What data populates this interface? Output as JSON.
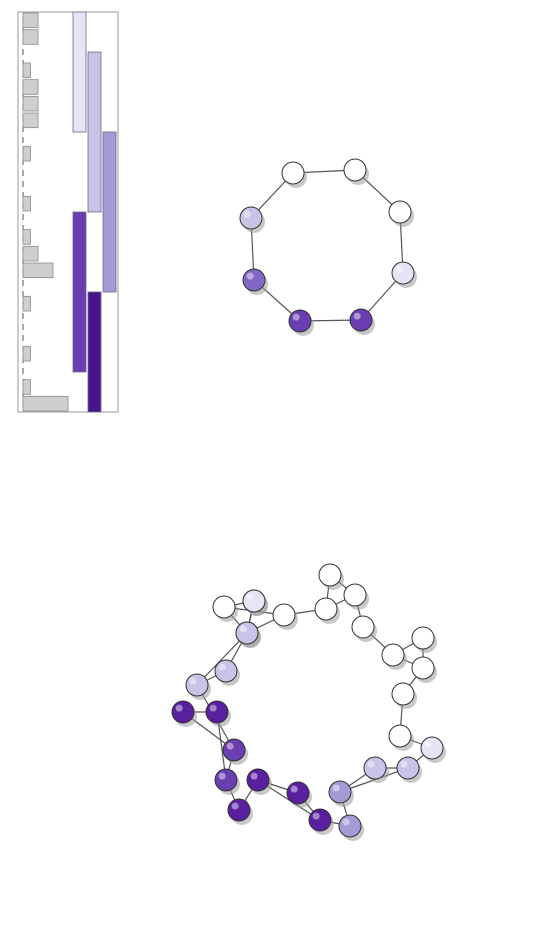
{
  "colors": {
    "shade_0": "#ffffff",
    "shade_1": "#e6e4f5",
    "shade_2": "#c8c4e8",
    "shade_3": "#a49ad6",
    "shade_4": "#8566c4",
    "shade_5": "#6a3db0",
    "shade_6": "#5a1f9e",
    "shade_7": "#4a148f"
  },
  "legend_panel": {
    "histogram_bars": [
      2,
      2,
      0,
      1,
      2,
      2,
      2,
      0,
      1,
      0,
      0,
      1,
      0,
      1,
      2,
      4,
      0,
      1,
      0,
      0,
      1,
      0,
      1,
      6
    ],
    "cover_intervals": [
      {
        "start": 0.0,
        "end": 0.3,
        "shade": "shade_1"
      },
      {
        "start": 0.1,
        "end": 0.5,
        "shade": "shade_2"
      },
      {
        "start": 0.3,
        "end": 0.7,
        "shade": "shade_3"
      },
      {
        "start": 0.5,
        "end": 0.9,
        "shade": "shade_5"
      },
      {
        "start": 0.7,
        "end": 1.0,
        "shade": "shade_7"
      }
    ]
  },
  "graph_small": {
    "nodes": [
      {
        "id": "a",
        "shade": "shade_0"
      },
      {
        "id": "b",
        "shade": "shade_0"
      },
      {
        "id": "c",
        "shade": "shade_0"
      },
      {
        "id": "d",
        "shade": "shade_1"
      },
      {
        "id": "e",
        "shade": "shade_5"
      },
      {
        "id": "f",
        "shade": "shade_5"
      },
      {
        "id": "g",
        "shade": "shade_4"
      },
      {
        "id": "h",
        "shade": "shade_2"
      }
    ],
    "edges": [
      [
        "a",
        "b"
      ],
      [
        "b",
        "c"
      ],
      [
        "c",
        "d"
      ],
      [
        "d",
        "e"
      ],
      [
        "e",
        "f"
      ],
      [
        "f",
        "g"
      ],
      [
        "g",
        "h"
      ],
      [
        "h",
        "a"
      ]
    ]
  },
  "graph_large": {
    "nodes": [
      {
        "id": "n1",
        "shade": "shade_0"
      },
      {
        "id": "n2",
        "shade": "shade_0"
      },
      {
        "id": "n3",
        "shade": "shade_0"
      },
      {
        "id": "n4",
        "shade": "shade_0"
      },
      {
        "id": "n5",
        "shade": "shade_0"
      },
      {
        "id": "n6",
        "shade": "shade_0"
      },
      {
        "id": "n7",
        "shade": "shade_0"
      },
      {
        "id": "n8",
        "shade": "shade_0"
      },
      {
        "id": "n9",
        "shade": "shade_0"
      },
      {
        "id": "n10",
        "shade": "shade_0"
      },
      {
        "id": "n11",
        "shade": "shade_0"
      },
      {
        "id": "n12",
        "shade": "shade_0"
      },
      {
        "id": "n13",
        "shade": "shade_0"
      },
      {
        "id": "n14",
        "shade": "shade_1"
      },
      {
        "id": "n15",
        "shade": "shade_2"
      },
      {
        "id": "n16",
        "shade": "shade_2"
      },
      {
        "id": "n17",
        "shade": "shade_3"
      },
      {
        "id": "n18",
        "shade": "shade_3"
      },
      {
        "id": "n19",
        "shade": "shade_6"
      },
      {
        "id": "n20",
        "shade": "shade_6"
      },
      {
        "id": "n21",
        "shade": "shade_6"
      },
      {
        "id": "n22",
        "shade": "shade_6"
      },
      {
        "id": "n23",
        "shade": "shade_5"
      },
      {
        "id": "n24",
        "shade": "shade_5"
      },
      {
        "id": "n25",
        "shade": "shade_6"
      },
      {
        "id": "n26",
        "shade": "shade_6"
      },
      {
        "id": "n27",
        "shade": "shade_2"
      },
      {
        "id": "n28",
        "shade": "shade_2"
      },
      {
        "id": "n29",
        "shade": "shade_2"
      },
      {
        "id": "n30",
        "shade": "shade_1"
      }
    ],
    "edges": [
      [
        "n1",
        "n2"
      ],
      [
        "n2",
        "n3"
      ],
      [
        "n3",
        "n1"
      ],
      [
        "n1",
        "n4"
      ],
      [
        "n4",
        "n5"
      ],
      [
        "n5",
        "n6"
      ],
      [
        "n6",
        "n7"
      ],
      [
        "n5",
        "n7"
      ],
      [
        "n7",
        "n8"
      ],
      [
        "n8",
        "n9"
      ],
      [
        "n9",
        "n10"
      ],
      [
        "n9",
        "n11"
      ],
      [
        "n10",
        "n11"
      ],
      [
        "n11",
        "n12"
      ],
      [
        "n12",
        "n13"
      ],
      [
        "n13",
        "n14"
      ],
      [
        "n14",
        "n15"
      ],
      [
        "n15",
        "n16"
      ],
      [
        "n16",
        "n17"
      ],
      [
        "n15",
        "n17"
      ],
      [
        "n17",
        "n18"
      ],
      [
        "n18",
        "n19"
      ],
      [
        "n19",
        "n20"
      ],
      [
        "n19",
        "n21"
      ],
      [
        "n20",
        "n21"
      ],
      [
        "n21",
        "n22"
      ],
      [
        "n22",
        "n23"
      ],
      [
        "n23",
        "n24"
      ],
      [
        "n23",
        "n25"
      ],
      [
        "n24",
        "n26"
      ],
      [
        "n25",
        "n26"
      ],
      [
        "n24",
        "n27"
      ],
      [
        "n27",
        "n28"
      ],
      [
        "n28",
        "n29"
      ],
      [
        "n27",
        "n29"
      ],
      [
        "n29",
        "n30"
      ],
      [
        "n30",
        "n1"
      ],
      [
        "n2",
        "n4"
      ]
    ]
  }
}
